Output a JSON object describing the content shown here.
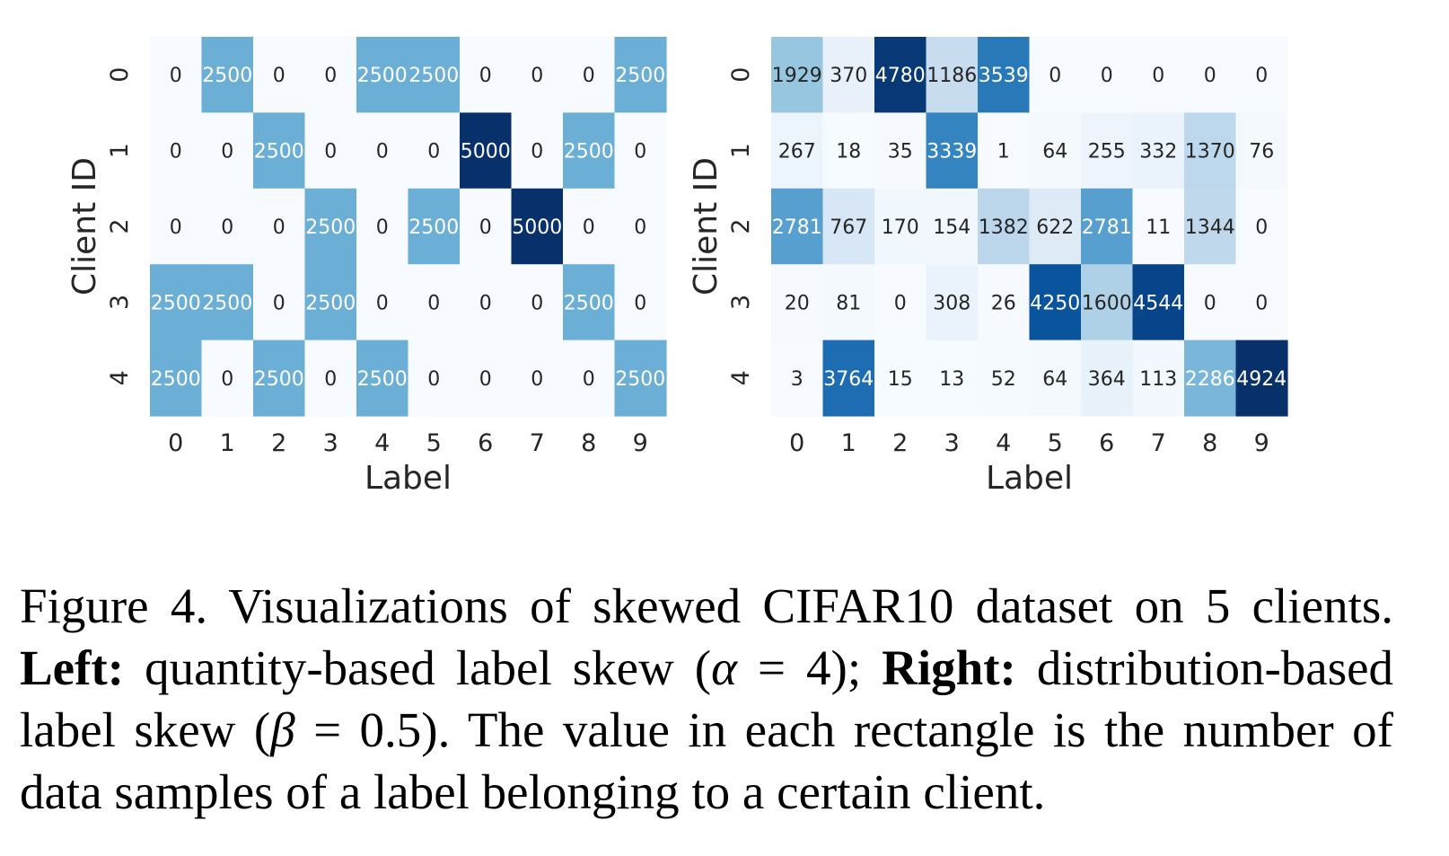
{
  "chart_data": [
    {
      "type": "heatmap",
      "title": "",
      "xlabel": "Label",
      "ylabel": "Client ID",
      "x": [
        "0",
        "1",
        "2",
        "3",
        "4",
        "5",
        "6",
        "7",
        "8",
        "9"
      ],
      "y": [
        "0",
        "1",
        "2",
        "3",
        "4"
      ],
      "values": [
        [
          0,
          2500,
          0,
          0,
          2500,
          2500,
          0,
          0,
          0,
          2500
        ],
        [
          0,
          0,
          2500,
          0,
          0,
          0,
          5000,
          0,
          2500,
          0
        ],
        [
          0,
          0,
          0,
          2500,
          0,
          2500,
          0,
          5000,
          0,
          0
        ],
        [
          2500,
          2500,
          0,
          2500,
          0,
          0,
          0,
          0,
          2500,
          0
        ],
        [
          2500,
          0,
          2500,
          0,
          2500,
          0,
          0,
          0,
          0,
          2500
        ]
      ],
      "vmin": 0,
      "vmax": 5000,
      "colormap": "Blues",
      "grid": false,
      "legend": "none"
    },
    {
      "type": "heatmap",
      "title": "",
      "xlabel": "Label",
      "ylabel": "Client ID",
      "x": [
        "0",
        "1",
        "2",
        "3",
        "4",
        "5",
        "6",
        "7",
        "8",
        "9"
      ],
      "y": [
        "0",
        "1",
        "2",
        "3",
        "4"
      ],
      "values": [
        [
          1929,
          370,
          4780,
          1186,
          3539,
          0,
          0,
          0,
          0,
          0
        ],
        [
          267,
          18,
          35,
          3339,
          1,
          64,
          255,
          332,
          1370,
          76
        ],
        [
          2781,
          767,
          170,
          154,
          1382,
          622,
          2781,
          11,
          1344,
          0
        ],
        [
          20,
          81,
          0,
          308,
          26,
          4250,
          1600,
          4544,
          0,
          0
        ],
        [
          3,
          3764,
          15,
          13,
          52,
          64,
          364,
          113,
          2286,
          4924
        ]
      ],
      "vmin": 0,
      "vmax": 4924,
      "colormap": "Blues",
      "grid": false,
      "legend": "none"
    }
  ],
  "caption": {
    "prefix": "Figure 4. Visualizations of skewed CIFAR10 dataset on 5 clients.",
    "left_label": "Left:",
    "left_text_a": "quantity-based label skew (",
    "alpha_symbol": "α",
    "left_eq": " = 4); ",
    "right_label": "Right:",
    "right_text_a": " distribution-based label skew (",
    "beta_symbol": "β",
    "right_eq": " = 0.5). The value in each rectangle is the number of data samples of a label belonging to a certain client."
  }
}
